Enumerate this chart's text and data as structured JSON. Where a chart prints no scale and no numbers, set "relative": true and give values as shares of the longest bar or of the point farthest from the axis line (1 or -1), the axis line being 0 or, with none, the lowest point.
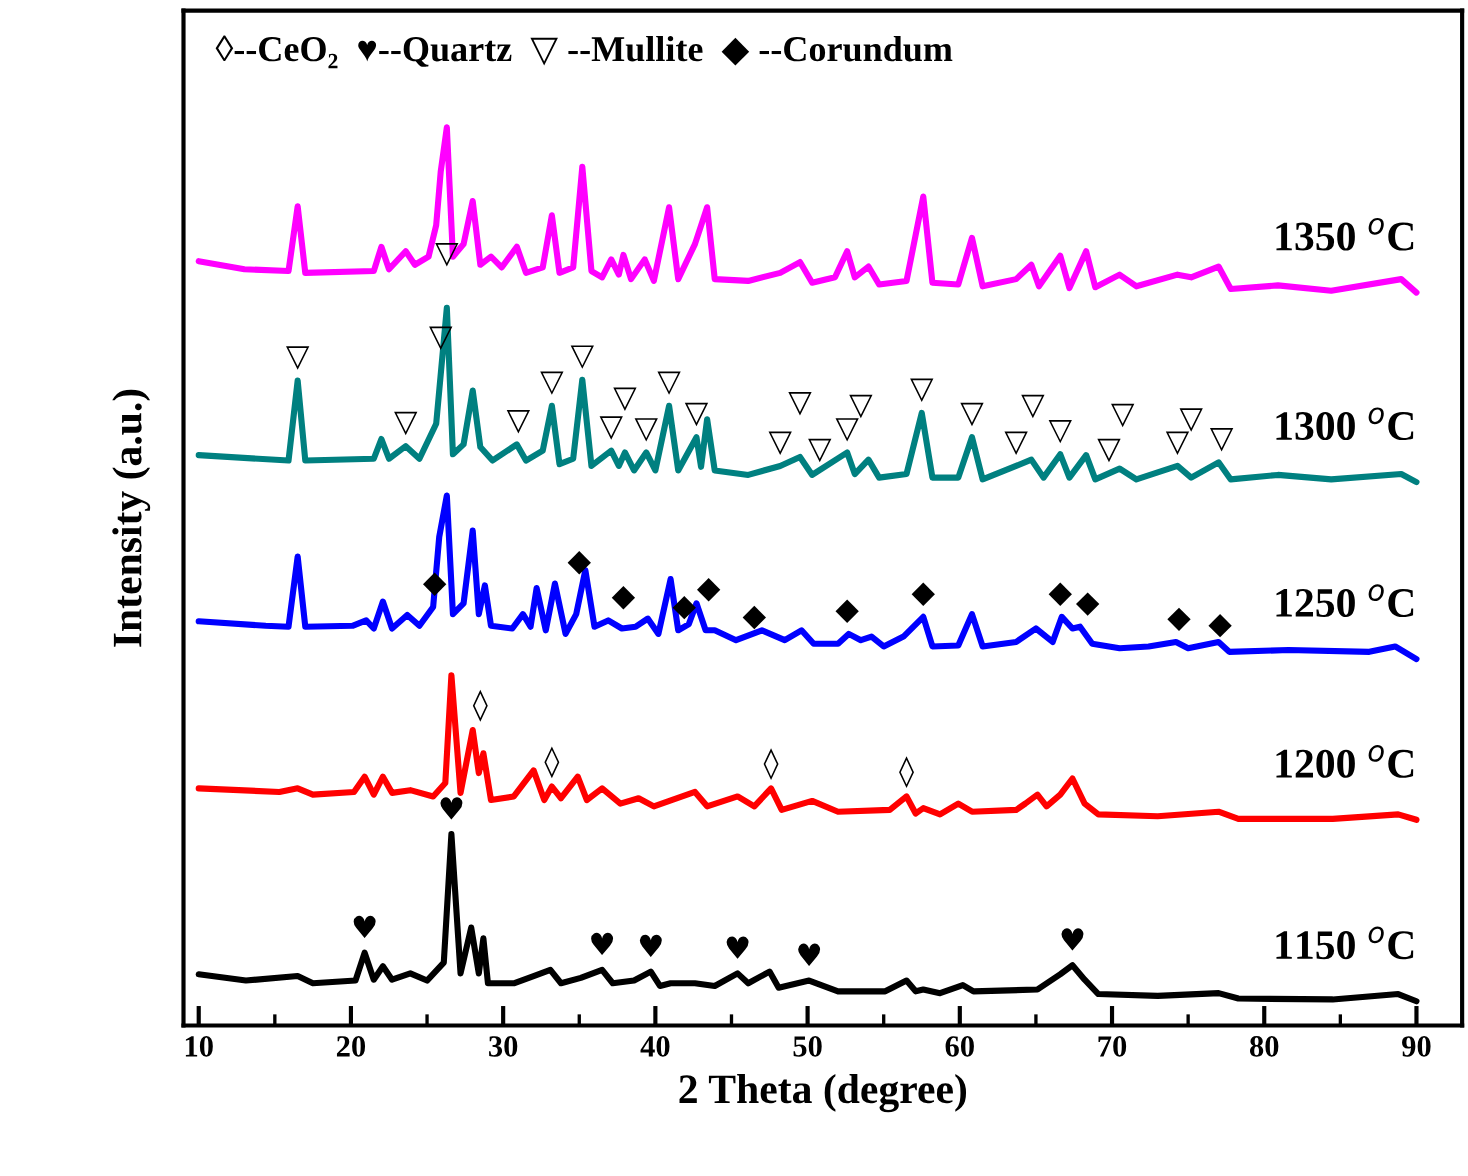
{
  "chart_data": {
    "type": "line",
    "relative": true,
    "xlabel": "2 Theta (degree)",
    "ylabel": "Intensity (a.u.)",
    "xlim": [
      9,
      93
    ],
    "xticks": [
      10,
      20,
      30,
      40,
      50,
      60,
      70,
      80,
      90
    ],
    "series": [
      {
        "name": "1150 $^{o}$C",
        "color": "#000000",
        "x": [
          10.0,
          13.1,
          16.5,
          17.5,
          20.3,
          20.9,
          21.5,
          22.1,
          22.7,
          23.9,
          25.0,
          26.1,
          26.6,
          27.2,
          27.9,
          28.4,
          28.7,
          29.0,
          30.7,
          32.0,
          33.1,
          33.8,
          35.1,
          36.5,
          37.2,
          38.6,
          39.7,
          40.3,
          41.0,
          42.6,
          43.9,
          45.4,
          46.1,
          47.5,
          48.1,
          50.1,
          52.0,
          55.1,
          56.5,
          57.1,
          57.6,
          58.7,
          60.2,
          60.9,
          65.1,
          66.6,
          67.4,
          68.2,
          69.1,
          73.0,
          77.0,
          78.3,
          84.5,
          88.8,
          90.0
        ],
        "values": [
          0.057,
          0.05,
          0.055,
          0.047,
          0.05,
          0.081,
          0.051,
          0.066,
          0.051,
          0.058,
          0.05,
          0.07,
          0.213,
          0.058,
          0.109,
          0.058,
          0.097,
          0.047,
          0.047,
          0.055,
          0.062,
          0.047,
          0.053,
          0.062,
          0.047,
          0.05,
          0.06,
          0.044,
          0.047,
          0.047,
          0.044,
          0.058,
          0.047,
          0.06,
          0.042,
          0.05,
          0.038,
          0.038,
          0.05,
          0.038,
          0.04,
          0.036,
          0.045,
          0.038,
          0.04,
          0.057,
          0.067,
          0.051,
          0.035,
          0.033,
          0.036,
          0.03,
          0.029,
          0.035,
          0.027
        ]
      },
      {
        "name": "1200 $^{o}$C",
        "color": "#ff0000",
        "x": [
          10.0,
          15.3,
          16.5,
          17.5,
          20.2,
          20.9,
          21.5,
          22.1,
          22.7,
          23.9,
          25.4,
          26.2,
          26.6,
          27.2,
          28.0,
          28.4,
          28.7,
          29.2,
          30.7,
          32.0,
          32.7,
          33.2,
          33.8,
          34.9,
          35.5,
          36.5,
          37.7,
          38.9,
          39.9,
          42.6,
          43.4,
          45.4,
          46.5,
          47.6,
          48.3,
          50.3,
          52.0,
          55.4,
          56.5,
          57.1,
          57.6,
          58.7,
          59.9,
          60.8,
          63.7,
          64.3,
          65.1,
          65.7,
          66.6,
          67.4,
          68.2,
          69.1,
          73.0,
          77.0,
          78.3,
          84.5,
          88.8,
          90.0
        ],
        "values": [
          0.264,
          0.26,
          0.264,
          0.257,
          0.26,
          0.277,
          0.257,
          0.277,
          0.259,
          0.262,
          0.255,
          0.27,
          0.39,
          0.259,
          0.329,
          0.281,
          0.303,
          0.251,
          0.255,
          0.284,
          0.251,
          0.266,
          0.253,
          0.277,
          0.251,
          0.264,
          0.247,
          0.253,
          0.244,
          0.26,
          0.244,
          0.255,
          0.244,
          0.264,
          0.24,
          0.25,
          0.238,
          0.24,
          0.255,
          0.236,
          0.242,
          0.235,
          0.247,
          0.238,
          0.24,
          0.247,
          0.257,
          0.244,
          0.257,
          0.275,
          0.247,
          0.235,
          0.233,
          0.238,
          0.23,
          0.23,
          0.235,
          0.229
        ]
      },
      {
        "name": "1250 $^{o}$C",
        "color": "#0000ff",
        "x": [
          10.0,
          14.4,
          15.9,
          16.5,
          17.0,
          20.1,
          21.0,
          21.5,
          22.1,
          22.7,
          23.7,
          24.5,
          25.4,
          25.8,
          26.3,
          26.7,
          27.4,
          28.0,
          28.4,
          28.8,
          29.2,
          30.6,
          31.3,
          31.8,
          32.2,
          32.8,
          33.4,
          34.1,
          34.8,
          35.4,
          36.0,
          36.9,
          37.8,
          38.7,
          39.5,
          40.2,
          41.0,
          41.5,
          42.2,
          42.7,
          43.3,
          43.9,
          45.3,
          47.0,
          48.5,
          49.6,
          50.4,
          52.0,
          52.7,
          53.5,
          54.2,
          55.0,
          56.3,
          57.6,
          58.2,
          59.9,
          60.8,
          61.5,
          63.7,
          65.0,
          66.1,
          66.7,
          67.4,
          67.9,
          68.7,
          70.5,
          72.4,
          74.2,
          75.0,
          77.0,
          77.7,
          81.6,
          86.9,
          88.6,
          90.0
        ],
        "values": [
          0.45,
          0.445,
          0.444,
          0.522,
          0.444,
          0.445,
          0.451,
          0.442,
          0.472,
          0.442,
          0.457,
          0.445,
          0.466,
          0.544,
          0.59,
          0.458,
          0.47,
          0.551,
          0.458,
          0.49,
          0.445,
          0.442,
          0.458,
          0.444,
          0.487,
          0.44,
          0.492,
          0.436,
          0.458,
          0.507,
          0.444,
          0.451,
          0.442,
          0.444,
          0.453,
          0.436,
          0.497,
          0.44,
          0.447,
          0.47,
          0.44,
          0.44,
          0.429,
          0.44,
          0.429,
          0.44,
          0.425,
          0.425,
          0.436,
          0.429,
          0.433,
          0.422,
          0.433,
          0.455,
          0.422,
          0.423,
          0.458,
          0.422,
          0.427,
          0.442,
          0.427,
          0.455,
          0.442,
          0.444,
          0.425,
          0.42,
          0.422,
          0.427,
          0.42,
          0.427,
          0.416,
          0.418,
          0.416,
          0.422,
          0.408
        ]
      },
      {
        "name": "1300 $^{o}$C",
        "color": "#008080",
        "x": [
          10.0,
          15.9,
          16.5,
          17.0,
          21.5,
          22.0,
          22.5,
          23.6,
          24.5,
          25.6,
          26.3,
          26.7,
          27.4,
          28.0,
          28.5,
          29.3,
          30.9,
          31.5,
          32.6,
          33.2,
          33.7,
          34.6,
          35.2,
          35.8,
          37.1,
          37.6,
          38.0,
          38.6,
          39.4,
          40.0,
          40.9,
          41.5,
          42.7,
          43.0,
          43.4,
          43.9,
          46.1,
          48.2,
          49.5,
          50.3,
          52.6,
          53.1,
          54.0,
          54.7,
          56.5,
          57.5,
          58.2,
          59.9,
          60.8,
          61.5,
          63.7,
          64.7,
          65.5,
          66.6,
          67.2,
          68.3,
          68.9,
          70.5,
          71.6,
          74.3,
          75.2,
          77.0,
          77.8,
          80.9,
          84.4,
          89.0,
          90.0
        ],
        "values": [
          0.635,
          0.629,
          0.718,
          0.629,
          0.631,
          0.653,
          0.631,
          0.645,
          0.631,
          0.67,
          0.799,
          0.636,
          0.647,
          0.707,
          0.644,
          0.629,
          0.647,
          0.629,
          0.64,
          0.69,
          0.625,
          0.631,
          0.719,
          0.623,
          0.64,
          0.623,
          0.638,
          0.618,
          0.638,
          0.618,
          0.69,
          0.618,
          0.655,
          0.622,
          0.675,
          0.618,
          0.613,
          0.623,
          0.633,
          0.613,
          0.638,
          0.614,
          0.63,
          0.61,
          0.614,
          0.682,
          0.61,
          0.61,
          0.655,
          0.608,
          0.623,
          0.63,
          0.61,
          0.636,
          0.61,
          0.635,
          0.608,
          0.62,
          0.608,
          0.623,
          0.61,
          0.627,
          0.608,
          0.613,
          0.608,
          0.614,
          0.605
        ]
      },
      {
        "name": "1350 $^{o}$C",
        "color": "#ff00ff",
        "x": [
          10.0,
          13.0,
          15.9,
          16.5,
          17.0,
          21.5,
          22.0,
          22.5,
          23.6,
          24.2,
          25.1,
          25.6,
          25.9,
          26.3,
          26.7,
          27.4,
          28.0,
          28.5,
          29.2,
          29.9,
          30.9,
          31.5,
          32.6,
          33.2,
          33.7,
          34.6,
          35.2,
          35.8,
          36.5,
          37.1,
          37.6,
          37.9,
          38.4,
          39.3,
          39.9,
          40.9,
          41.5,
          42.6,
          43.4,
          43.9,
          46.1,
          48.2,
          49.5,
          50.3,
          51.8,
          52.6,
          53.1,
          54.0,
          54.7,
          56.5,
          57.6,
          58.2,
          59.9,
          60.8,
          61.5,
          63.7,
          64.7,
          65.2,
          66.6,
          67.2,
          68.3,
          68.9,
          70.5,
          71.6,
          74.3,
          75.2,
          77.0,
          77.8,
          80.9,
          84.4,
          89.0,
          90.0
        ],
        "values": [
          0.851,
          0.842,
          0.84,
          0.912,
          0.838,
          0.84,
          0.867,
          0.842,
          0.862,
          0.847,
          0.856,
          0.891,
          0.951,
          1.0,
          0.856,
          0.87,
          0.918,
          0.847,
          0.856,
          0.844,
          0.867,
          0.838,
          0.844,
          0.902,
          0.838,
          0.844,
          0.956,
          0.84,
          0.833,
          0.853,
          0.836,
          0.858,
          0.831,
          0.853,
          0.829,
          0.911,
          0.831,
          0.87,
          0.911,
          0.831,
          0.829,
          0.838,
          0.85,
          0.827,
          0.833,
          0.862,
          0.833,
          0.845,
          0.825,
          0.829,
          0.923,
          0.827,
          0.825,
          0.877,
          0.823,
          0.831,
          0.847,
          0.823,
          0.857,
          0.821,
          0.862,
          0.822,
          0.836,
          0.823,
          0.836,
          0.833,
          0.845,
          0.82,
          0.824,
          0.818,
          0.831,
          0.816
        ]
      }
    ],
    "annotations": [
      "◊--CeO₂  ♥--Quartz  ▽ --Mullite  ◆ --Corundum",
      {
        "text": "♥",
        "x": 20.9,
        "y": 0.081
      },
      {
        "text": "♥",
        "x": 26.6,
        "y": 0.213
      },
      {
        "text": "♥",
        "x": 36.5,
        "y": 0.062
      },
      {
        "text": "♥",
        "x": 39.7,
        "y": 0.06
      },
      {
        "text": "♥",
        "x": 45.4,
        "y": 0.058
      },
      {
        "text": "♥",
        "x": 50.1,
        "y": 0.05
      },
      {
        "text": "♥",
        "x": 67.4,
        "y": 0.067
      },
      {
        "text": "◊",
        "x": 28.5,
        "y": 0.329
      },
      {
        "text": "◊",
        "x": 33.2,
        "y": 0.266
      },
      {
        "text": "◊",
        "x": 47.6,
        "y": 0.264
      },
      {
        "text": "◊",
        "x": 56.5,
        "y": 0.255
      },
      {
        "text": "◆",
        "x": 25.5,
        "y": 0.466
      },
      {
        "text": "◆",
        "x": 35.0,
        "y": 0.49
      },
      {
        "text": "◆",
        "x": 37.9,
        "y": 0.451
      },
      {
        "text": "◆",
        "x": 41.9,
        "y": 0.44
      },
      {
        "text": "◆",
        "x": 43.5,
        "y": 0.46
      },
      {
        "text": "◆",
        "x": 46.5,
        "y": 0.429
      },
      {
        "text": "◆",
        "x": 52.6,
        "y": 0.436
      },
      {
        "text": "◆",
        "x": 57.6,
        "y": 0.455
      },
      {
        "text": "◆",
        "x": 66.6,
        "y": 0.455
      },
      {
        "text": "◆",
        "x": 68.4,
        "y": 0.444
      },
      {
        "text": "◆",
        "x": 74.4,
        "y": 0.427
      },
      {
        "text": "◆",
        "x": 77.1,
        "y": 0.42
      },
      {
        "text": "▽",
        "x": 16.5,
        "y": 0.718
      },
      {
        "text": "▽",
        "x": 23.6,
        "y": 0.645
      },
      {
        "text": "▽",
        "x": 25.9,
        "y": 0.74
      },
      {
        "text": "▽",
        "x": 26.3,
        "y": 0.799
      },
      {
        "text": "▽",
        "x": 31.0,
        "y": 0.647
      },
      {
        "text": "▽",
        "x": 33.2,
        "y": 0.69
      },
      {
        "text": "▽",
        "x": 35.2,
        "y": 0.719
      },
      {
        "text": "▽",
        "x": 37.1,
        "y": 0.64
      },
      {
        "text": "▽",
        "x": 38.0,
        "y": 0.638
      },
      {
        "text": "▽",
        "x": 39.4,
        "y": 0.638
      },
      {
        "text": "▽",
        "x": 40.9,
        "y": 0.69
      },
      {
        "text": "▽",
        "x": 42.7,
        "y": 0.655
      },
      {
        "text": "▽",
        "x": 48.2,
        "y": 0.623
      },
      {
        "text": "▽",
        "x": 49.5,
        "y": 0.633
      },
      {
        "text": "▽",
        "x": 50.8,
        "y": 0.615
      },
      {
        "text": "▽",
        "x": 52.6,
        "y": 0.638
      },
      {
        "text": "▽",
        "x": 53.5,
        "y": 0.63
      },
      {
        "text": "▽",
        "x": 57.5,
        "y": 0.682
      },
      {
        "text": "▽",
        "x": 60.8,
        "y": 0.655
      },
      {
        "text": "▽",
        "x": 63.7,
        "y": 0.623
      },
      {
        "text": "▽",
        "x": 64.8,
        "y": 0.63
      },
      {
        "text": "▽",
        "x": 66.6,
        "y": 0.636
      },
      {
        "text": "▽",
        "x": 69.8,
        "y": 0.615
      },
      {
        "text": "▽",
        "x": 70.7,
        "y": 0.62
      },
      {
        "text": "▽",
        "x": 74.3,
        "y": 0.623
      },
      {
        "text": "▽",
        "x": 75.2,
        "y": 0.615
      },
      {
        "text": "▽",
        "x": 77.2,
        "y": 0.627
      }
    ]
  }
}
